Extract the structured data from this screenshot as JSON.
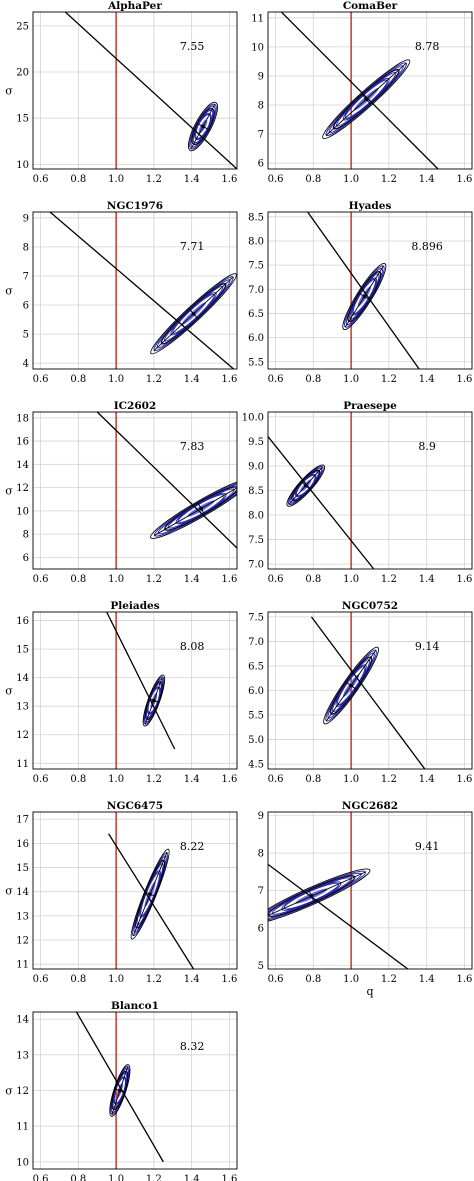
{
  "chart_data": [
    {
      "type": "scatter",
      "title": "AlphaPer",
      "annotation": "7.55",
      "ylabel": "σ",
      "xlabel": "",
      "xlim": [
        0.56,
        1.64
      ],
      "ylim": [
        9.5,
        26.5
      ],
      "xticks": [
        "0.6",
        "0.8",
        "1.0",
        "1.2",
        "1.4",
        "1.6"
      ],
      "yticks": [
        "10",
        "15",
        "20",
        "25"
      ],
      "reference_x": 1.0,
      "fit_line": [
        [
          0.56,
          29.7
        ],
        [
          1.64,
          9.5
        ]
      ],
      "center": [
        1.46,
        14.1
      ],
      "ellipse_rx": [
        0.14,
        0.11,
        0.08
      ],
      "ellipse_ry": [
        0.9,
        0.7,
        0.5
      ],
      "ellipse_angle": -62
    },
    {
      "type": "scatter",
      "title": "ComaBer",
      "annotation": "8.78",
      "ylabel": "",
      "xlabel": "",
      "xlim": [
        0.56,
        1.64
      ],
      "ylim": [
        5.8,
        11.2
      ],
      "xticks": [
        "0.6",
        "0.8",
        "1.0",
        "1.2",
        "1.4",
        "1.6"
      ],
      "yticks": [
        "6",
        "7",
        "8",
        "9",
        "10",
        "11"
      ],
      "reference_x": 1.0,
      "fit_line": [
        [
          0.6,
          11.4
        ],
        [
          1.46,
          5.8
        ]
      ],
      "center": [
        1.08,
        8.2
      ],
      "ellipse_rx": [
        0.3,
        0.24,
        0.17
      ],
      "ellipse_ry": [
        0.28,
        0.22,
        0.15
      ],
      "ellipse_angle": -42
    },
    {
      "type": "scatter",
      "title": "NGC1976",
      "annotation": "7.71",
      "ylabel": "σ",
      "xlabel": "",
      "xlim": [
        0.56,
        1.64
      ],
      "ylim": [
        3.8,
        9.2
      ],
      "xticks": [
        "0.6",
        "0.8",
        "1.0",
        "1.2",
        "1.4",
        "1.6"
      ],
      "yticks": [
        "4",
        "5",
        "6",
        "7",
        "8",
        "9"
      ],
      "reference_x": 1.0,
      "fit_line": [
        [
          0.56,
          9.7
        ],
        [
          1.64,
          3.7
        ]
      ],
      "center": [
        1.41,
        5.7
      ],
      "ellipse_rx": [
        0.3,
        0.24,
        0.17
      ],
      "ellipse_ry": [
        0.25,
        0.19,
        0.13
      ],
      "ellipse_angle": -43
    },
    {
      "type": "scatter",
      "title": "Hyades",
      "annotation": "8.896",
      "ylabel": "",
      "xlabel": "",
      "xlim": [
        0.56,
        1.64
      ],
      "ylim": [
        5.35,
        8.6
      ],
      "xticks": [
        "0.6",
        "0.8",
        "1.0",
        "1.2",
        "1.4",
        "1.6"
      ],
      "yticks": [
        "5.5",
        "6.0",
        "6.5",
        "7.0",
        "7.5",
        "8.0",
        "8.5"
      ],
      "reference_x": 1.0,
      "fit_line": [
        [
          0.77,
          8.6
        ],
        [
          1.36,
          5.35
        ]
      ],
      "center": [
        1.07,
        6.85
      ],
      "ellipse_rx": [
        0.2,
        0.16,
        0.12
      ],
      "ellipse_ry": [
        0.15,
        0.12,
        0.08
      ],
      "ellipse_angle": -58
    },
    {
      "type": "scatter",
      "title": "IC2602",
      "annotation": "7.83",
      "ylabel": "σ",
      "xlabel": "",
      "xlim": [
        0.56,
        1.64
      ],
      "ylim": [
        5.0,
        18.5
      ],
      "xticks": [
        "0.6",
        "0.8",
        "1.0",
        "1.2",
        "1.4",
        "1.6"
      ],
      "yticks": [
        "6",
        "8",
        "10",
        "12",
        "14",
        "16",
        "18"
      ],
      "reference_x": 1.0,
      "fit_line": [
        [
          0.9,
          18.5
        ],
        [
          1.64,
          6.8
        ]
      ],
      "center": [
        1.45,
        10.2
      ],
      "ellipse_rx": [
        0.3,
        0.23,
        0.16
      ],
      "ellipse_ry": [
        0.7,
        0.55,
        0.4
      ],
      "ellipse_angle": -30
    },
    {
      "type": "scatter",
      "title": "Praesepe",
      "annotation": "8.9",
      "ylabel": "",
      "xlabel": "",
      "xlim": [
        0.56,
        1.64
      ],
      "ylim": [
        6.9,
        10.1
      ],
      "xticks": [
        "0.6",
        "0.8",
        "1.0",
        "1.2",
        "1.4",
        "1.6"
      ],
      "yticks": [
        "7.0",
        "7.5",
        "8.0",
        "8.5",
        "9.0",
        "9.5",
        "10.0"
      ],
      "reference_x": 1.0,
      "fit_line": [
        [
          0.56,
          9.6
        ],
        [
          1.12,
          6.9
        ]
      ],
      "center": [
        0.76,
        8.6
      ],
      "ellipse_rx": [
        0.14,
        0.11,
        0.08
      ],
      "ellipse_ry": [
        0.1,
        0.08,
        0.06
      ],
      "ellipse_angle": -48
    },
    {
      "type": "scatter",
      "title": "Pleiades",
      "annotation": "8.08",
      "ylabel": "σ",
      "xlabel": "",
      "xlim": [
        0.56,
        1.64
      ],
      "ylim": [
        10.8,
        16.3
      ],
      "xticks": [
        "0.6",
        "0.8",
        "1.0",
        "1.2",
        "1.4",
        "1.6"
      ],
      "yticks": [
        "11",
        "12",
        "13",
        "14",
        "15",
        "16"
      ],
      "reference_x": 1.0,
      "fit_line": [
        [
          0.95,
          16.3
        ],
        [
          1.31,
          11.5
        ]
      ],
      "center": [
        1.2,
        13.2
      ],
      "ellipse_rx": [
        0.14,
        0.11,
        0.08
      ],
      "ellipse_ry": [
        0.1,
        0.08,
        0.06
      ],
      "ellipse_angle": -70
    },
    {
      "type": "scatter",
      "title": "NGC0752",
      "annotation": "9.14",
      "ylabel": "",
      "xlabel": "",
      "xlim": [
        0.56,
        1.64
      ],
      "ylim": [
        4.4,
        7.6
      ],
      "xticks": [
        "0.6",
        "0.8",
        "1.0",
        "1.2",
        "1.4",
        "1.6"
      ],
      "yticks": [
        "4.5",
        "5.0",
        "5.5",
        "6.0",
        "6.5",
        "7.0",
        "7.5"
      ],
      "reference_x": 1.0,
      "fit_line": [
        [
          0.79,
          7.5
        ],
        [
          1.39,
          4.4
        ]
      ],
      "center": [
        1.0,
        6.1
      ],
      "ellipse_rx": [
        0.24,
        0.19,
        0.14
      ],
      "ellipse_ry": [
        0.15,
        0.12,
        0.08
      ],
      "ellipse_angle": -55
    },
    {
      "type": "scatter",
      "title": "NGC6475",
      "annotation": "8.22",
      "ylabel": "σ",
      "xlabel": "",
      "xlim": [
        0.56,
        1.64
      ],
      "ylim": [
        10.8,
        17.3
      ],
      "xticks": [
        "0.6",
        "0.8",
        "1.0",
        "1.2",
        "1.4",
        "1.6"
      ],
      "yticks": [
        "11",
        "12",
        "13",
        "14",
        "15",
        "16",
        "17"
      ],
      "reference_x": 1.0,
      "fit_line": [
        [
          0.96,
          16.4
        ],
        [
          1.41,
          10.8
        ]
      ],
      "center": [
        1.18,
        13.9
      ],
      "ellipse_rx": [
        0.25,
        0.2,
        0.14
      ],
      "ellipse_ry": [
        0.14,
        0.11,
        0.08
      ],
      "ellipse_angle": -68
    },
    {
      "type": "scatter",
      "title": "NGC2682",
      "annotation": "9.41",
      "ylabel": "",
      "xlabel": "q",
      "xlim": [
        0.56,
        1.64
      ],
      "ylim": [
        4.9,
        9.1
      ],
      "xticks": [
        "0.6",
        "0.8",
        "1.0",
        "1.2",
        "1.4",
        "1.6"
      ],
      "yticks": [
        "5",
        "6",
        "7",
        "8",
        "9"
      ],
      "reference_x": 1.0,
      "fit_line": [
        [
          0.56,
          7.7
        ],
        [
          1.3,
          4.9
        ]
      ],
      "center": [
        0.79,
        6.85
      ],
      "ellipse_rx": [
        0.33,
        0.26,
        0.18
      ],
      "ellipse_ry": [
        0.25,
        0.2,
        0.14
      ],
      "ellipse_angle": -24
    },
    {
      "type": "scatter",
      "title": "Blanco1",
      "annotation": "8.32",
      "ylabel": "σ",
      "xlabel": "q",
      "xlim": [
        0.56,
        1.64
      ],
      "ylim": [
        9.8,
        14.2
      ],
      "xticks": [
        "0.6",
        "0.8",
        "1.0",
        "1.2",
        "1.4",
        "1.6"
      ],
      "yticks": [
        "10",
        "11",
        "12",
        "13",
        "14"
      ],
      "reference_x": 1.0,
      "fit_line": [
        [
          0.79,
          14.2
        ],
        [
          1.25,
          10.0
        ]
      ],
      "center": [
        1.02,
        12.0
      ],
      "ellipse_rx": [
        0.14,
        0.11,
        0.08
      ],
      "ellipse_ry": [
        0.09,
        0.07,
        0.05
      ],
      "ellipse_angle": -72
    }
  ]
}
